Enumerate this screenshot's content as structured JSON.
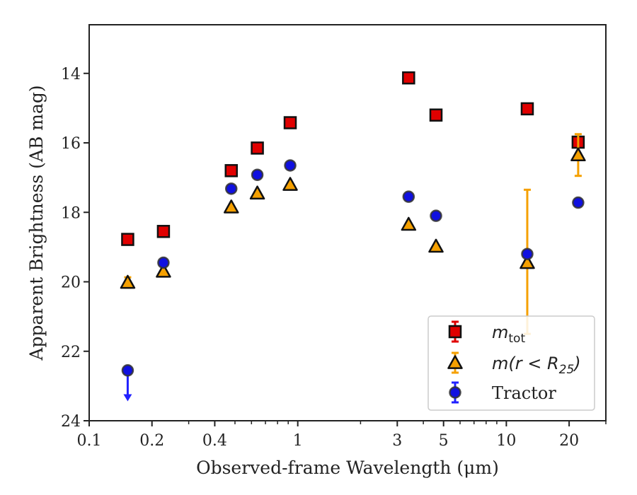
{
  "chart_data": {
    "type": "scatter",
    "xlabel": "Observed-frame Wavelength (μm)",
    "ylabel": "Apparent Brightness (AB mag)",
    "xscale": "log",
    "xlim": [
      0.1,
      30
    ],
    "ylim": [
      24,
      12.6
    ],
    "y_inverted": true,
    "xticks": [
      {
        "value": 0.1,
        "label": "0.1"
      },
      {
        "value": 0.2,
        "label": "0.2"
      },
      {
        "value": 0.4,
        "label": "0.4"
      },
      {
        "value": 1,
        "label": "1"
      },
      {
        "value": 3,
        "label": "3"
      },
      {
        "value": 5,
        "label": "5"
      },
      {
        "value": 10,
        "label": "10"
      },
      {
        "value": 20,
        "label": "20"
      }
    ],
    "yticks": [
      {
        "value": 14,
        "label": "14"
      },
      {
        "value": 16,
        "label": "16"
      },
      {
        "value": 18,
        "label": "18"
      },
      {
        "value": 20,
        "label": "20"
      },
      {
        "value": 22,
        "label": "22"
      },
      {
        "value": 24,
        "label": "24"
      }
    ],
    "grid": false,
    "legend_position": "bottom-right",
    "series": [
      {
        "name": "m_tot",
        "label_base": "m",
        "label_sub": "tot",
        "marker": "square",
        "color": "#e00000",
        "errcolor": "#e00000",
        "points": [
          {
            "x": 0.153,
            "y": 18.78
          },
          {
            "x": 0.227,
            "y": 18.55
          },
          {
            "x": 0.48,
            "y": 16.8
          },
          {
            "x": 0.64,
            "y": 16.15
          },
          {
            "x": 0.92,
            "y": 15.42
          },
          {
            "x": 3.4,
            "y": 14.13
          },
          {
            "x": 4.6,
            "y": 15.2
          },
          {
            "x": 12.6,
            "y": 15.02
          },
          {
            "x": 22.1,
            "y": 15.98
          }
        ]
      },
      {
        "name": "m(r<R25)",
        "label_base": "m(r < R",
        "label_sub": "25",
        "label_tail": ")",
        "marker": "triangle",
        "color": "#f5a000",
        "errcolor": "#f5a000",
        "points": [
          {
            "x": 0.153,
            "y": 20.02,
            "err": 0.15
          },
          {
            "x": 0.227,
            "y": 19.7
          },
          {
            "x": 0.48,
            "y": 17.85
          },
          {
            "x": 0.64,
            "y": 17.45
          },
          {
            "x": 0.92,
            "y": 17.2
          },
          {
            "x": 3.4,
            "y": 18.35
          },
          {
            "x": 4.6,
            "y": 18.98
          },
          {
            "x": 12.6,
            "y": 19.45,
            "err_low": 17.35,
            "err_high": 21.5
          },
          {
            "x": 22.1,
            "y": 16.35,
            "err_low": 15.75,
            "err_high": 16.95
          }
        ]
      },
      {
        "name": "Tractor",
        "marker": "circle",
        "color": "#1010e0",
        "errcolor": "#2020ff",
        "points": [
          {
            "x": 0.153,
            "y": 22.55,
            "upper_limit": true
          },
          {
            "x": 0.227,
            "y": 19.45
          },
          {
            "x": 0.48,
            "y": 17.32
          },
          {
            "x": 0.64,
            "y": 16.92
          },
          {
            "x": 0.92,
            "y": 16.65
          },
          {
            "x": 3.4,
            "y": 17.55
          },
          {
            "x": 4.6,
            "y": 18.1
          },
          {
            "x": 12.6,
            "y": 19.2
          },
          {
            "x": 22.1,
            "y": 17.72
          }
        ]
      }
    ]
  }
}
